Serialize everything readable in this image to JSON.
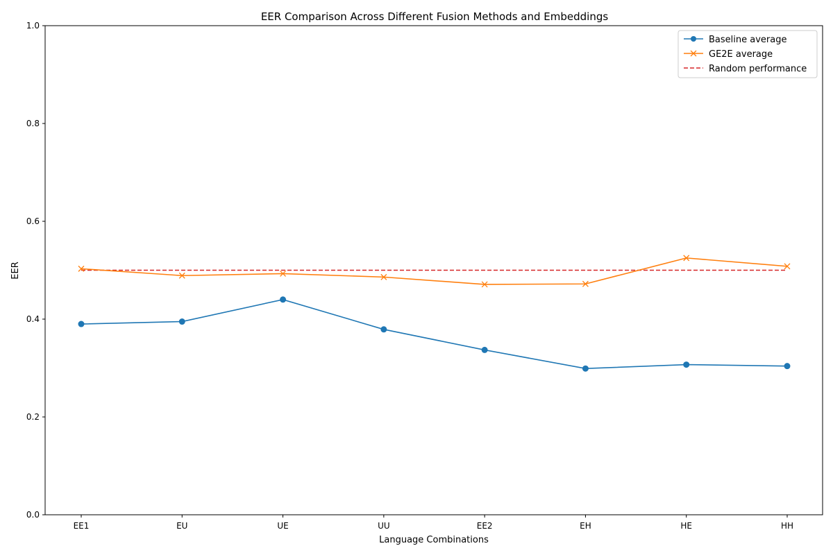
{
  "chart_data": {
    "type": "line",
    "title": "EER Comparison Across Different Fusion Methods and Embeddings",
    "xlabel": "Language Combinations",
    "ylabel": "EER",
    "ylim": [
      0,
      1.0
    ],
    "yticks": [
      "0.0",
      "0.2",
      "0.4",
      "0.6",
      "0.8",
      "1.0"
    ],
    "categories": [
      "EE1",
      "EU",
      "UE",
      "UU",
      "EE2",
      "EH",
      "HE",
      "HH"
    ],
    "legend_position": "top-right",
    "grid": false,
    "series": [
      {
        "name": "Baseline average",
        "values": [
          0.39,
          0.395,
          0.44,
          0.379,
          0.337,
          0.299,
          0.307,
          0.304
        ],
        "color": "#1f77b4",
        "marker": "circle",
        "linestyle": "solid"
      },
      {
        "name": "GE2E average",
        "values": [
          0.503,
          0.489,
          0.493,
          0.486,
          0.471,
          0.472,
          0.525,
          0.508
        ],
        "color": "#ff7f0e",
        "marker": "x",
        "linestyle": "solid"
      },
      {
        "name": "Random performance",
        "values": [
          0.5,
          0.5,
          0.5,
          0.5,
          0.5,
          0.5,
          0.5,
          0.5
        ],
        "color": "#d62728",
        "marker": "none",
        "linestyle": "dashed"
      }
    ]
  }
}
